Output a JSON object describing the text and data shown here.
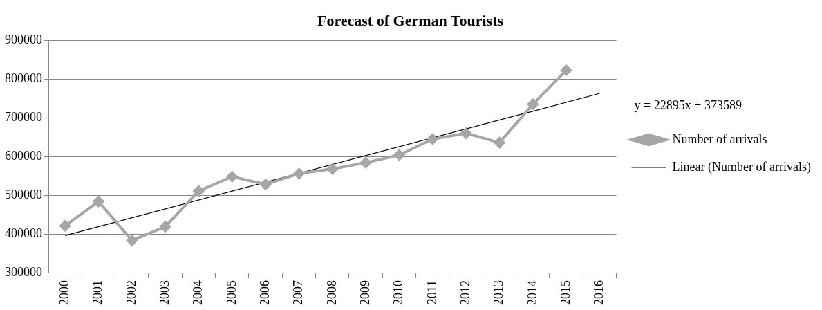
{
  "chart_data": {
    "type": "line",
    "title": "Forecast of German Tourists",
    "categories": [
      "2000",
      "2001",
      "2002",
      "2003",
      "2004",
      "2005",
      "2006",
      "2007",
      "2008",
      "2009",
      "2010",
      "2011",
      "2012",
      "2013",
      "2014",
      "2015",
      "2016"
    ],
    "series": [
      {
        "name": "Number of arrivals",
        "color": "#a6a6a6",
        "marker": "diamond",
        "values": [
          421000,
          484000,
          383000,
          419000,
          511000,
          548000,
          528000,
          556000,
          568000,
          584000,
          604000,
          645000,
          660000,
          636000,
          735000,
          823000,
          null
        ]
      },
      {
        "name": "Linear (Number of arrivals)",
        "color": "#000000",
        "marker": "none",
        "values": [
          396000,
          null,
          null,
          null,
          null,
          null,
          null,
          null,
          null,
          null,
          null,
          null,
          null,
          null,
          null,
          null,
          763000
        ]
      }
    ],
    "ylim": [
      300000,
      900000
    ],
    "yticks": [
      300000,
      400000,
      500000,
      600000,
      700000,
      800000,
      900000
    ],
    "grid": "y",
    "legend": "right",
    "annotations": [
      "y = 22895x + 373589"
    ]
  }
}
